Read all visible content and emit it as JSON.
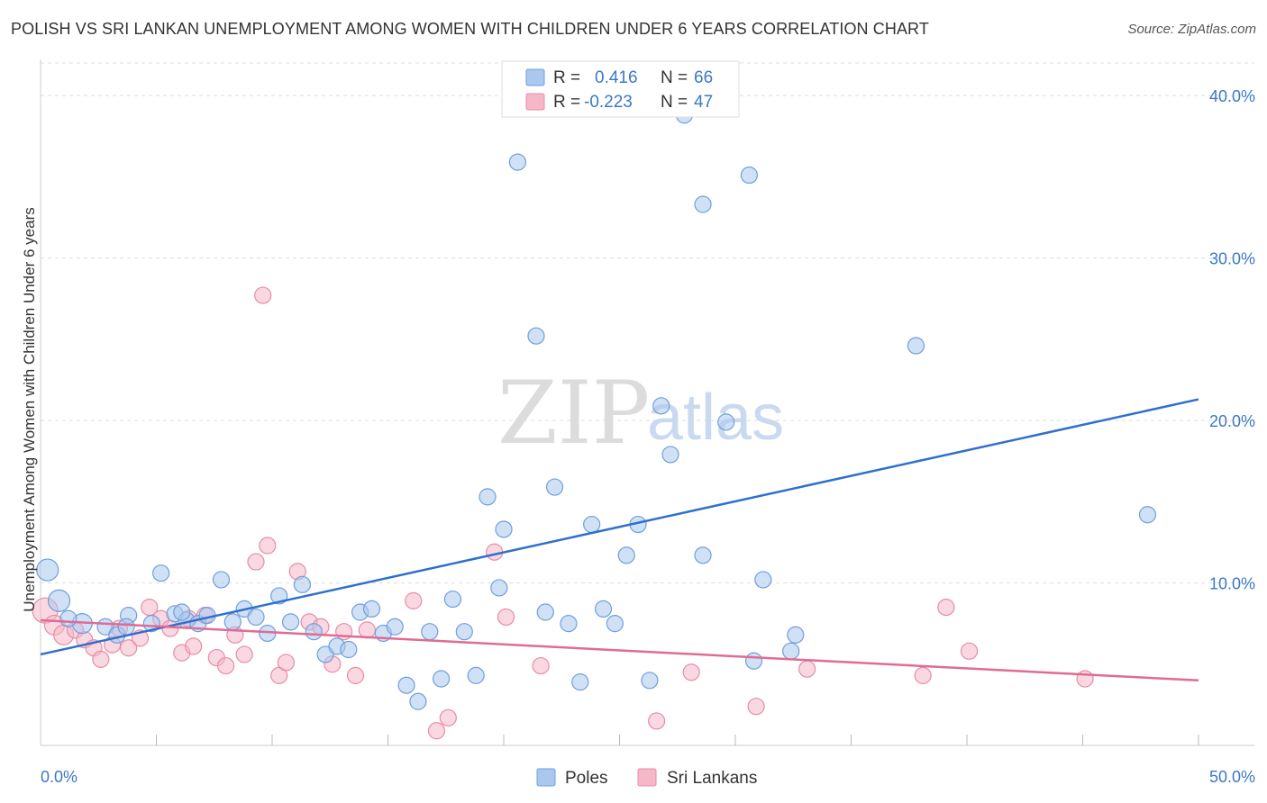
{
  "header": {
    "title": "POLISH VS SRI LANKAN UNEMPLOYMENT AMONG WOMEN WITH CHILDREN UNDER 6 YEARS CORRELATION CHART",
    "source": "Source: ZipAtlas.com"
  },
  "watermark": {
    "zip": "ZIP",
    "atlas": "atlas"
  },
  "legend_box": {
    "rows": [
      {
        "r_label": "R =",
        "r_value": "0.416",
        "n_label": "N =",
        "n_value": "66",
        "color": "#aac8ef"
      },
      {
        "r_label": "R =",
        "r_value": "-0.223",
        "n_label": "N =",
        "n_value": "47",
        "color": "#f5b8c9"
      }
    ]
  },
  "colors": {
    "poles_fill": "#aac8ef",
    "poles_stroke": "#6f9fdc",
    "poles_line": "#2f6fce",
    "sri_fill": "#f5b8c9",
    "sri_stroke": "#e88ba6",
    "sri_line": "#e06b95",
    "grid": "#dddddd",
    "axis_text": "#3b78c9"
  },
  "chart_data": {
    "type": "scatter",
    "title": "POLISH VS SRI LANKAN UNEMPLOYMENT AMONG WOMEN WITH CHILDREN UNDER 6 YEARS CORRELATION CHART",
    "xlabel": "",
    "ylabel": "Unemployment Among Women with Children Under 6 years",
    "xlim": [
      0,
      50
    ],
    "ylim": [
      0,
      42
    ],
    "x_tick_labels": [
      "0.0%",
      "50.0%"
    ],
    "y_ticks": [
      10,
      20,
      30,
      40
    ],
    "y_tick_labels": [
      "10.0%",
      "20.0%",
      "30.0%",
      "40.0%"
    ],
    "grid": true,
    "legend_position": "bottom",
    "series": [
      {
        "name": "Poles",
        "r": 0.416,
        "n": 66,
        "trend": {
          "x": [
            0,
            50
          ],
          "y": [
            5.6,
            21.3
          ]
        },
        "points": [
          {
            "x": 0.3,
            "y": 10.8,
            "s": 12
          },
          {
            "x": 0.8,
            "y": 8.9,
            "s": 12
          },
          {
            "x": 1.8,
            "y": 7.5,
            "s": 11
          },
          {
            "x": 2.8,
            "y": 7.3,
            "s": 9
          },
          {
            "x": 3.3,
            "y": 6.8,
            "s": 9
          },
          {
            "x": 3.8,
            "y": 8.0,
            "s": 9
          },
          {
            "x": 4.8,
            "y": 7.5,
            "s": 9
          },
          {
            "x": 5.2,
            "y": 10.6,
            "s": 9
          },
          {
            "x": 5.8,
            "y": 8.1,
            "s": 9
          },
          {
            "x": 6.3,
            "y": 7.7,
            "s": 9
          },
          {
            "x": 6.8,
            "y": 7.5,
            "s": 9
          },
          {
            "x": 7.2,
            "y": 8.0,
            "s": 9
          },
          {
            "x": 7.8,
            "y": 10.2,
            "s": 9
          },
          {
            "x": 8.3,
            "y": 7.6,
            "s": 9
          },
          {
            "x": 8.8,
            "y": 8.4,
            "s": 9
          },
          {
            "x": 9.3,
            "y": 7.9,
            "s": 9
          },
          {
            "x": 9.8,
            "y": 6.9,
            "s": 9
          },
          {
            "x": 10.3,
            "y": 9.2,
            "s": 9
          },
          {
            "x": 10.8,
            "y": 7.6,
            "s": 9
          },
          {
            "x": 11.3,
            "y": 9.9,
            "s": 9
          },
          {
            "x": 11.8,
            "y": 7.0,
            "s": 9
          },
          {
            "x": 12.3,
            "y": 5.6,
            "s": 9
          },
          {
            "x": 12.8,
            "y": 6.1,
            "s": 9
          },
          {
            "x": 13.3,
            "y": 5.9,
            "s": 9
          },
          {
            "x": 13.8,
            "y": 8.2,
            "s": 9
          },
          {
            "x": 14.3,
            "y": 8.4,
            "s": 9
          },
          {
            "x": 14.8,
            "y": 6.9,
            "s": 9
          },
          {
            "x": 15.3,
            "y": 7.3,
            "s": 9
          },
          {
            "x": 15.8,
            "y": 3.7,
            "s": 9
          },
          {
            "x": 16.3,
            "y": 2.7,
            "s": 9
          },
          {
            "x": 16.8,
            "y": 7.0,
            "s": 9
          },
          {
            "x": 17.3,
            "y": 4.1,
            "s": 9
          },
          {
            "x": 17.8,
            "y": 9.0,
            "s": 9
          },
          {
            "x": 18.3,
            "y": 7.0,
            "s": 9
          },
          {
            "x": 18.8,
            "y": 4.3,
            "s": 9
          },
          {
            "x": 19.3,
            "y": 15.3,
            "s": 9
          },
          {
            "x": 19.8,
            "y": 9.7,
            "s": 9
          },
          {
            "x": 20.0,
            "y": 13.3,
            "s": 9
          },
          {
            "x": 20.6,
            "y": 35.9,
            "s": 9
          },
          {
            "x": 21.4,
            "y": 25.2,
            "s": 9
          },
          {
            "x": 21.8,
            "y": 8.2,
            "s": 9
          },
          {
            "x": 22.2,
            "y": 15.9,
            "s": 9
          },
          {
            "x": 22.8,
            "y": 7.5,
            "s": 9
          },
          {
            "x": 23.3,
            "y": 3.9,
            "s": 9
          },
          {
            "x": 23.8,
            "y": 13.6,
            "s": 9
          },
          {
            "x": 24.3,
            "y": 8.4,
            "s": 9
          },
          {
            "x": 24.8,
            "y": 7.5,
            "s": 9
          },
          {
            "x": 25.3,
            "y": 11.7,
            "s": 9
          },
          {
            "x": 25.8,
            "y": 13.6,
            "s": 9
          },
          {
            "x": 26.3,
            "y": 4.0,
            "s": 9
          },
          {
            "x": 26.8,
            "y": 20.9,
            "s": 9
          },
          {
            "x": 27.2,
            "y": 17.9,
            "s": 9
          },
          {
            "x": 27.8,
            "y": 38.8,
            "s": 9
          },
          {
            "x": 28.6,
            "y": 33.3,
            "s": 9
          },
          {
            "x": 28.6,
            "y": 11.7,
            "s": 9
          },
          {
            "x": 29.6,
            "y": 19.9,
            "s": 9
          },
          {
            "x": 30.6,
            "y": 35.1,
            "s": 9
          },
          {
            "x": 30.8,
            "y": 5.2,
            "s": 9
          },
          {
            "x": 31.2,
            "y": 10.2,
            "s": 9
          },
          {
            "x": 32.4,
            "y": 5.8,
            "s": 9
          },
          {
            "x": 32.6,
            "y": 6.8,
            "s": 9
          },
          {
            "x": 37.8,
            "y": 24.6,
            "s": 9
          },
          {
            "x": 47.8,
            "y": 14.2,
            "s": 9
          },
          {
            "x": 3.7,
            "y": 7.3,
            "s": 9
          },
          {
            "x": 6.1,
            "y": 8.2,
            "s": 9
          },
          {
            "x": 1.2,
            "y": 7.8,
            "s": 9
          }
        ]
      },
      {
        "name": "Sri Lankans",
        "r": -0.223,
        "n": 47,
        "trend": {
          "x": [
            0,
            50
          ],
          "y": [
            7.7,
            4.0
          ]
        },
        "points": [
          {
            "x": 0.2,
            "y": 8.3,
            "s": 14
          },
          {
            "x": 0.6,
            "y": 7.4,
            "s": 11
          },
          {
            "x": 1.0,
            "y": 6.8,
            "s": 11
          },
          {
            "x": 1.5,
            "y": 7.1,
            "s": 9
          },
          {
            "x": 1.9,
            "y": 6.5,
            "s": 9
          },
          {
            "x": 2.3,
            "y": 6.0,
            "s": 9
          },
          {
            "x": 2.6,
            "y": 5.3,
            "s": 9
          },
          {
            "x": 3.1,
            "y": 6.2,
            "s": 9
          },
          {
            "x": 3.4,
            "y": 7.2,
            "s": 9
          },
          {
            "x": 3.8,
            "y": 6.0,
            "s": 9
          },
          {
            "x": 4.3,
            "y": 6.6,
            "s": 9
          },
          {
            "x": 4.7,
            "y": 8.5,
            "s": 9
          },
          {
            "x": 5.2,
            "y": 7.8,
            "s": 9
          },
          {
            "x": 5.6,
            "y": 7.2,
            "s": 9
          },
          {
            "x": 6.1,
            "y": 5.7,
            "s": 9
          },
          {
            "x": 6.4,
            "y": 7.8,
            "s": 9
          },
          {
            "x": 6.6,
            "y": 6.1,
            "s": 9
          },
          {
            "x": 7.1,
            "y": 8.0,
            "s": 9
          },
          {
            "x": 7.6,
            "y": 5.4,
            "s": 9
          },
          {
            "x": 8.0,
            "y": 4.9,
            "s": 9
          },
          {
            "x": 8.4,
            "y": 6.8,
            "s": 9
          },
          {
            "x": 8.8,
            "y": 5.6,
            "s": 9
          },
          {
            "x": 9.3,
            "y": 11.3,
            "s": 9
          },
          {
            "x": 9.6,
            "y": 27.7,
            "s": 9
          },
          {
            "x": 9.8,
            "y": 12.3,
            "s": 9
          },
          {
            "x": 10.3,
            "y": 4.3,
            "s": 9
          },
          {
            "x": 10.6,
            "y": 5.1,
            "s": 9
          },
          {
            "x": 11.1,
            "y": 10.7,
            "s": 9
          },
          {
            "x": 11.6,
            "y": 7.6,
            "s": 9
          },
          {
            "x": 12.1,
            "y": 7.3,
            "s": 9
          },
          {
            "x": 12.6,
            "y": 5.0,
            "s": 9
          },
          {
            "x": 13.1,
            "y": 7.0,
            "s": 9
          },
          {
            "x": 13.6,
            "y": 4.3,
            "s": 9
          },
          {
            "x": 14.1,
            "y": 7.1,
            "s": 9
          },
          {
            "x": 16.1,
            "y": 8.9,
            "s": 9
          },
          {
            "x": 17.1,
            "y": 0.9,
            "s": 9
          },
          {
            "x": 17.6,
            "y": 1.7,
            "s": 9
          },
          {
            "x": 19.6,
            "y": 11.9,
            "s": 9
          },
          {
            "x": 20.1,
            "y": 7.9,
            "s": 9
          },
          {
            "x": 21.6,
            "y": 4.9,
            "s": 9
          },
          {
            "x": 26.6,
            "y": 1.5,
            "s": 9
          },
          {
            "x": 28.1,
            "y": 4.5,
            "s": 9
          },
          {
            "x": 30.9,
            "y": 2.4,
            "s": 9
          },
          {
            "x": 33.1,
            "y": 4.7,
            "s": 9
          },
          {
            "x": 38.1,
            "y": 4.3,
            "s": 9
          },
          {
            "x": 39.1,
            "y": 8.5,
            "s": 9
          },
          {
            "x": 40.1,
            "y": 5.8,
            "s": 9
          },
          {
            "x": 45.1,
            "y": 4.1,
            "s": 9
          }
        ]
      }
    ]
  }
}
